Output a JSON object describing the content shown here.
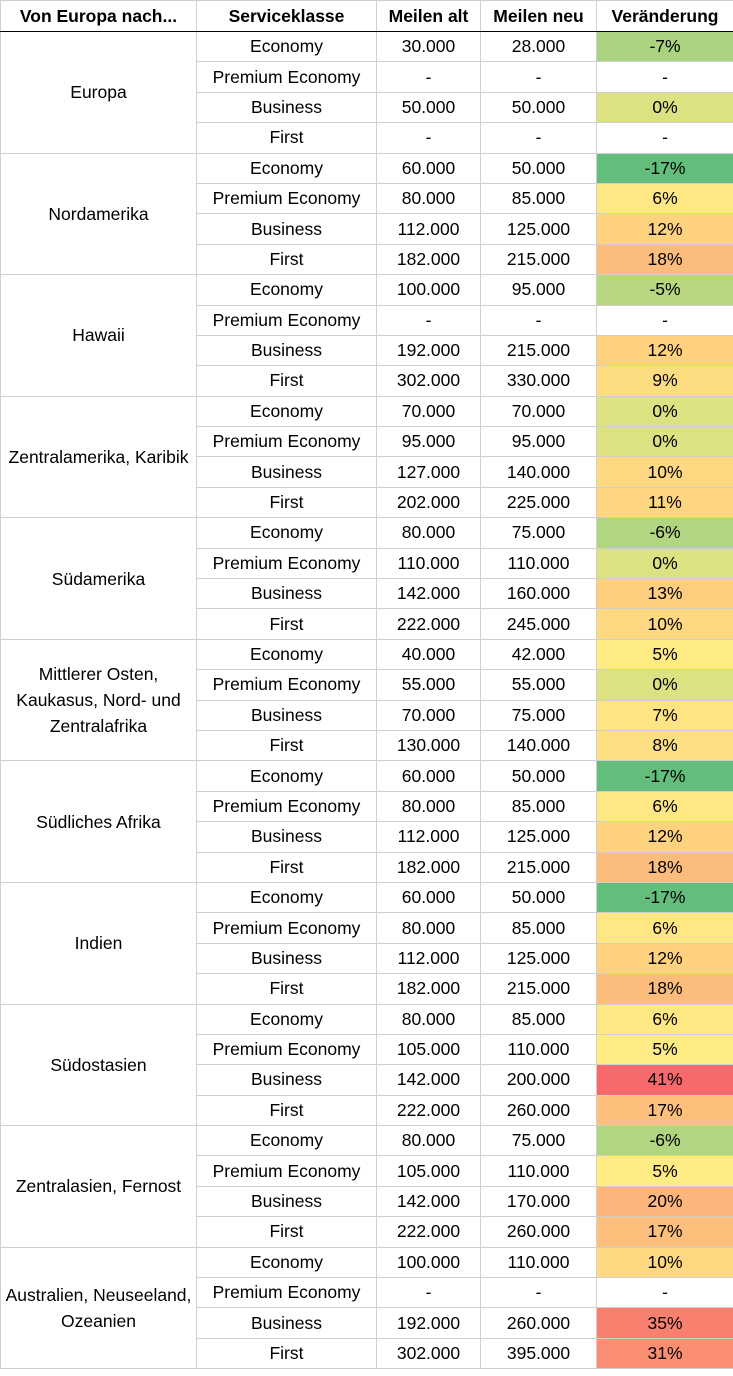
{
  "header": {
    "region": "Von Europa nach...",
    "class": "Serviceklasse",
    "old": "Meilen alt",
    "new": "Meilen neu",
    "change": "Veränderung"
  },
  "groups": [
    {
      "region": "Europa",
      "rows": [
        {
          "cls": "Economy",
          "old": "30.000",
          "new": "28.000",
          "change": "-7%",
          "pct": -7
        },
        {
          "cls": "Premium Economy",
          "old": "-",
          "new": "-",
          "change": "-",
          "pct": null
        },
        {
          "cls": "Business",
          "old": "50.000",
          "new": "50.000",
          "change": "0%",
          "pct": 0
        },
        {
          "cls": "First",
          "old": "-",
          "new": "-",
          "change": "-",
          "pct": null
        }
      ]
    },
    {
      "region": "Nordamerika",
      "rows": [
        {
          "cls": "Economy",
          "old": "60.000",
          "new": "50.000",
          "change": "-17%",
          "pct": -17
        },
        {
          "cls": "Premium Economy",
          "old": "80.000",
          "new": "85.000",
          "change": "6%",
          "pct": 6
        },
        {
          "cls": "Business",
          "old": "112.000",
          "new": "125.000",
          "change": "12%",
          "pct": 12
        },
        {
          "cls": "First",
          "old": "182.000",
          "new": "215.000",
          "change": "18%",
          "pct": 18
        }
      ]
    },
    {
      "region": "Hawaii",
      "rows": [
        {
          "cls": "Economy",
          "old": "100.000",
          "new": "95.000",
          "change": "-5%",
          "pct": -5
        },
        {
          "cls": "Premium Economy",
          "old": "-",
          "new": "-",
          "change": "-",
          "pct": null
        },
        {
          "cls": "Business",
          "old": "192.000",
          "new": "215.000",
          "change": "12%",
          "pct": 12
        },
        {
          "cls": "First",
          "old": "302.000",
          "new": "330.000",
          "change": "9%",
          "pct": 9
        }
      ]
    },
    {
      "region": "Zentralamerika, Karibik",
      "rows": [
        {
          "cls": "Economy",
          "old": "70.000",
          "new": "70.000",
          "change": "0%",
          "pct": 0
        },
        {
          "cls": "Premium Economy",
          "old": "95.000",
          "new": "95.000",
          "change": "0%",
          "pct": 0
        },
        {
          "cls": "Business",
          "old": "127.000",
          "new": "140.000",
          "change": "10%",
          "pct": 10
        },
        {
          "cls": "First",
          "old": "202.000",
          "new": "225.000",
          "change": "11%",
          "pct": 11
        }
      ]
    },
    {
      "region": "Südamerika",
      "rows": [
        {
          "cls": "Economy",
          "old": "80.000",
          "new": "75.000",
          "change": "-6%",
          "pct": -6
        },
        {
          "cls": "Premium Economy",
          "old": "110.000",
          "new": "110.000",
          "change": "0%",
          "pct": 0
        },
        {
          "cls": "Business",
          "old": "142.000",
          "new": "160.000",
          "change": "13%",
          "pct": 13
        },
        {
          "cls": "First",
          "old": "222.000",
          "new": "245.000",
          "change": "10%",
          "pct": 10
        }
      ]
    },
    {
      "region": "Mittlerer Osten, Kaukasus, Nord- und Zentralafrika",
      "rows": [
        {
          "cls": "Economy",
          "old": "40.000",
          "new": "42.000",
          "change": "5%",
          "pct": 5
        },
        {
          "cls": "Premium Economy",
          "old": "55.000",
          "new": "55.000",
          "change": "0%",
          "pct": 0
        },
        {
          "cls": "Business",
          "old": "70.000",
          "new": "75.000",
          "change": "7%",
          "pct": 7
        },
        {
          "cls": "First",
          "old": "130.000",
          "new": "140.000",
          "change": "8%",
          "pct": 8
        }
      ]
    },
    {
      "region": "Südliches Afrika",
      "rows": [
        {
          "cls": "Economy",
          "old": "60.000",
          "new": "50.000",
          "change": "-17%",
          "pct": -17
        },
        {
          "cls": "Premium Economy",
          "old": "80.000",
          "new": "85.000",
          "change": "6%",
          "pct": 6
        },
        {
          "cls": "Business",
          "old": "112.000",
          "new": "125.000",
          "change": "12%",
          "pct": 12
        },
        {
          "cls": "First",
          "old": "182.000",
          "new": "215.000",
          "change": "18%",
          "pct": 18
        }
      ]
    },
    {
      "region": "Indien",
      "rows": [
        {
          "cls": "Economy",
          "old": "60.000",
          "new": "50.000",
          "change": "-17%",
          "pct": -17
        },
        {
          "cls": "Premium Economy",
          "old": "80.000",
          "new": "85.000",
          "change": "6%",
          "pct": 6
        },
        {
          "cls": "Business",
          "old": "112.000",
          "new": "125.000",
          "change": "12%",
          "pct": 12
        },
        {
          "cls": "First",
          "old": "182.000",
          "new": "215.000",
          "change": "18%",
          "pct": 18
        }
      ]
    },
    {
      "region": "Südostasien",
      "rows": [
        {
          "cls": "Economy",
          "old": "80.000",
          "new": "85.000",
          "change": "6%",
          "pct": 6
        },
        {
          "cls": "Premium Economy",
          "old": "105.000",
          "new": "110.000",
          "change": "5%",
          "pct": 5
        },
        {
          "cls": "Business",
          "old": "142.000",
          "new": "200.000",
          "change": "41%",
          "pct": 41
        },
        {
          "cls": "First",
          "old": "222.000",
          "new": "260.000",
          "change": "17%",
          "pct": 17
        }
      ]
    },
    {
      "region": "Zentralasien, Fernost",
      "rows": [
        {
          "cls": "Economy",
          "old": "80.000",
          "new": "75.000",
          "change": "-6%",
          "pct": -6
        },
        {
          "cls": "Premium Economy",
          "old": "105.000",
          "new": "110.000",
          "change": "5%",
          "pct": 5
        },
        {
          "cls": "Business",
          "old": "142.000",
          "new": "170.000",
          "change": "20%",
          "pct": 20
        },
        {
          "cls": "First",
          "old": "222.000",
          "new": "260.000",
          "change": "17%",
          "pct": 17
        }
      ]
    },
    {
      "region": "Australien, Neuseeland, Ozeanien",
      "rows": [
        {
          "cls": "Economy",
          "old": "100.000",
          "new": "110.000",
          "change": "10%",
          "pct": 10
        },
        {
          "cls": "Premium Economy",
          "old": "-",
          "new": "-",
          "change": "-",
          "pct": null
        },
        {
          "cls": "Business",
          "old": "192.000",
          "new": "260.000",
          "change": "35%",
          "pct": 35
        },
        {
          "cls": "First",
          "old": "302.000",
          "new": "395.000",
          "change": "31%",
          "pct": 31
        }
      ]
    }
  ],
  "color_scale": {
    "min_pct": -17,
    "mid_pct": 5,
    "max_pct": 41,
    "low": "#63be7b",
    "mid": "#ffeb84",
    "high": "#f8696b",
    "empty": "#ffffff"
  }
}
